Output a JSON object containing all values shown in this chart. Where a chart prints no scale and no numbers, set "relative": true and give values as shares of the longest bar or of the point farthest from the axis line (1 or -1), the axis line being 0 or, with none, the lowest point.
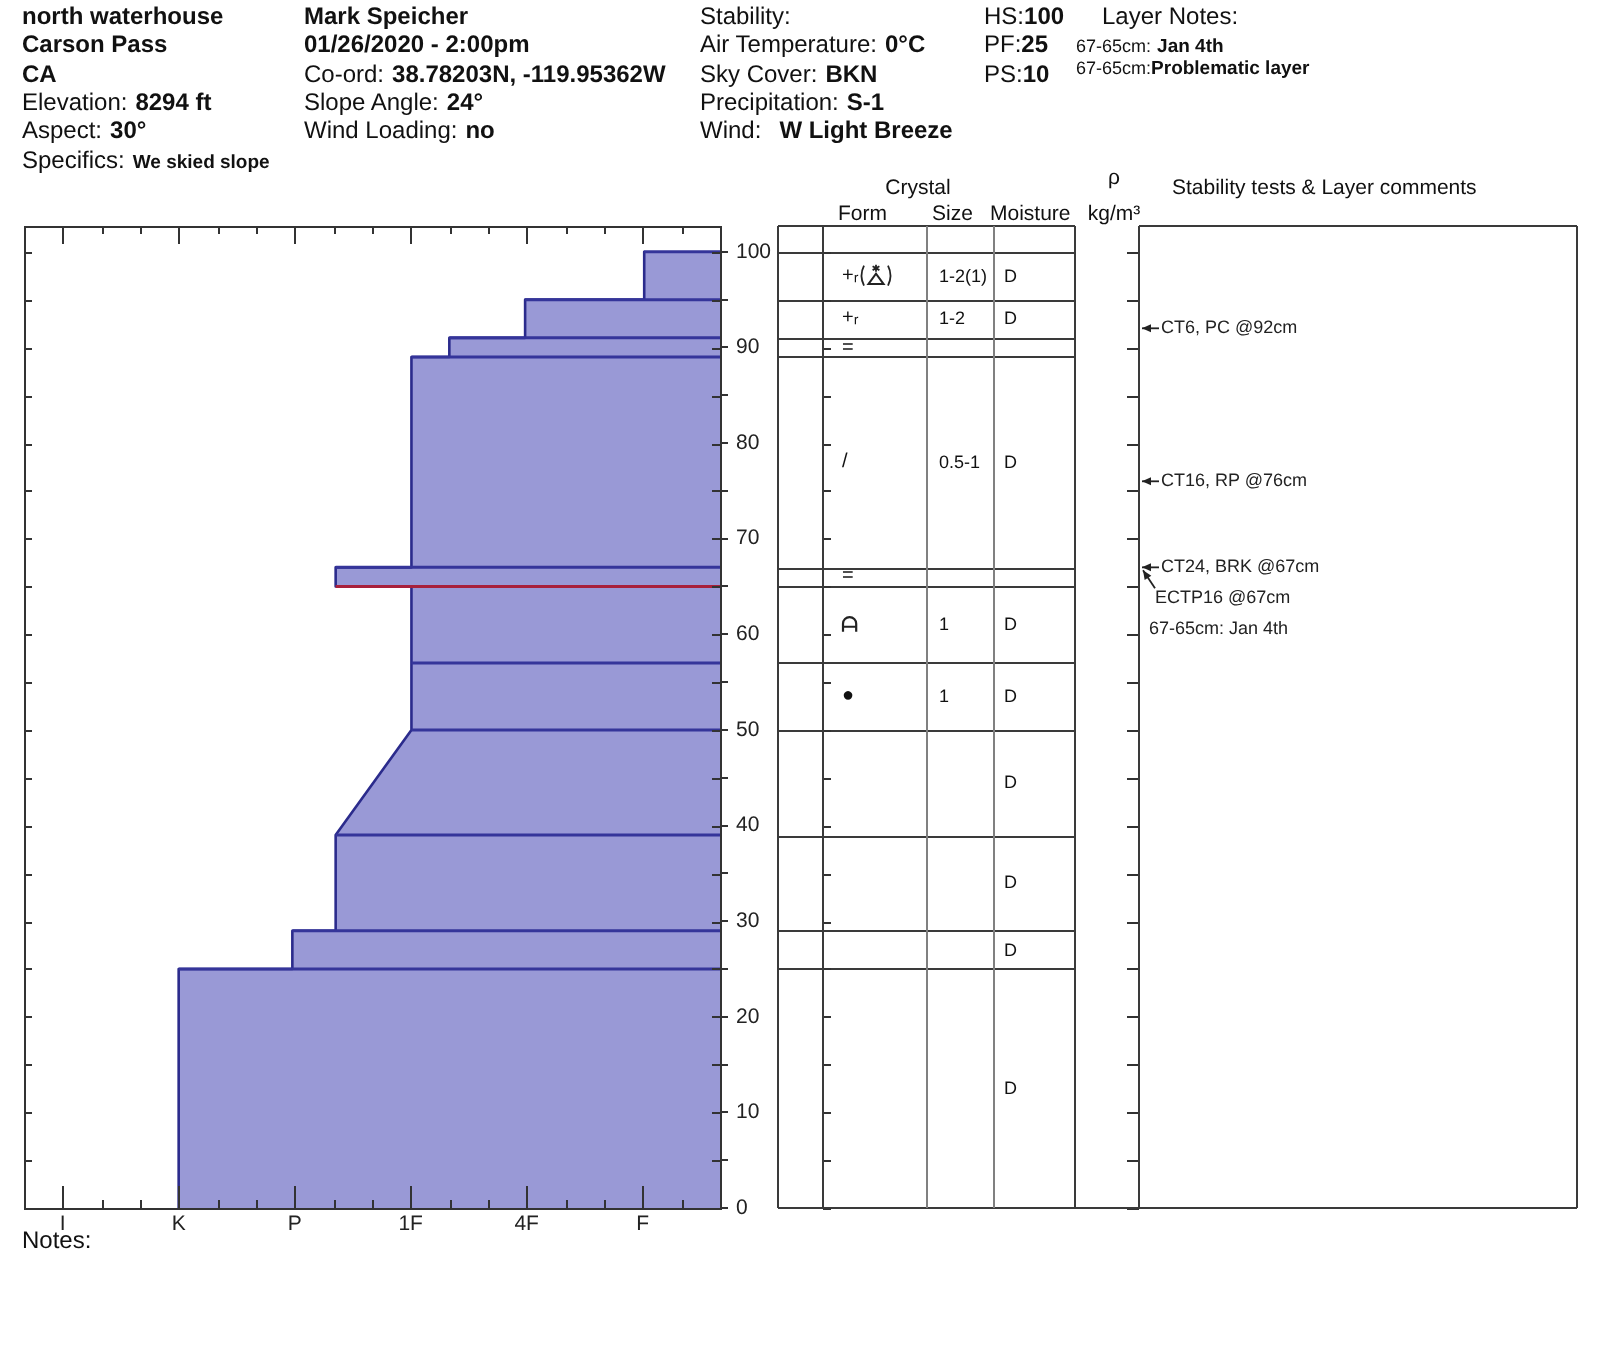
{
  "chart_data": [
    {
      "type": "other",
      "annotations": [
        "north waterhouse",
        "Carson Pass",
        "CA",
        "Elevation:",
        "8294 ft",
        "Aspect:",
        "30°",
        "Specifics:",
        "We skied slope",
        "Mark Speicher",
        "01/26/2020 - 2:00pm",
        "Co-ord:",
        "38.78203N, -119.95362W",
        "Slope Angle:",
        "24°",
        "Wind Loading:",
        "no",
        "Stability:",
        "Air Temperature:",
        "0°C",
        "Sky Cover:",
        "BKN",
        "Precipitation:",
        "S-1",
        "Wind:",
        "W Light Breeze",
        "HS:",
        "100",
        "PF:",
        "25",
        "PS:",
        "10",
        "Layer Notes:",
        "67-65cm:",
        "Jan 4th",
        "67-65cm:",
        "Problematic layer"
      ]
    },
    {
      "type": "area",
      "orientation": "horizontal",
      "relative": true,
      "x": [
        0,
        25,
        25,
        29,
        29,
        39,
        50,
        65,
        65,
        67,
        67,
        89,
        89,
        91,
        91,
        95,
        95,
        100
      ],
      "values": [
        -1,
        -1,
        -0.79,
        -0.79,
        -0.71,
        -0.71,
        -0.57,
        -0.57,
        -0.71,
        -0.71,
        -0.57,
        -0.57,
        -0.5,
        -0.5,
        -0.36,
        -0.36,
        -0.14,
        -0.14
      ],
      "color": "#9999d6",
      "ylim": [
        0,
        102.7
      ],
      "yticks": [
        0,
        {
          "value": 5,
          "label": null
        },
        10,
        {
          "value": 15,
          "label": null
        },
        20,
        {
          "value": 25,
          "label": null
        },
        30,
        {
          "value": 35,
          "label": null
        },
        40,
        {
          "value": 45,
          "label": null
        },
        50,
        {
          "value": 55,
          "label": null
        },
        60,
        {
          "value": 65,
          "label": null
        },
        70,
        {
          "value": 75,
          "label": null
        },
        80,
        {
          "value": 85,
          "label": null
        },
        90,
        {
          "value": 95,
          "label": null
        },
        100
      ],
      "ref_lines": [
        {
          "axis": "y",
          "value": 100,
          "color": "#35359a"
        },
        {
          "axis": "y",
          "value": 95,
          "color": "#35359a"
        },
        {
          "axis": "y",
          "value": 91,
          "color": "#35359a"
        },
        {
          "axis": "y",
          "value": 89,
          "color": "#35359a"
        },
        {
          "axis": "y",
          "value": 67,
          "color": "#35359a"
        },
        {
          "axis": "y",
          "value": 65,
          "color": "#a8203c"
        },
        {
          "axis": "y",
          "value": 57,
          "color": "#35359a"
        },
        {
          "axis": "y",
          "value": 50,
          "color": "#35359a"
        },
        {
          "axis": "y",
          "value": 39,
          "color": "#35359a"
        },
        {
          "axis": "y",
          "value": 29,
          "color": "#35359a"
        },
        {
          "axis": "y",
          "value": 25,
          "color": "#35359a"
        },
        {
          "axis": "y",
          "value": 92,
          "label": "CT6, PC @92cm"
        },
        {
          "axis": "y",
          "value": 76,
          "label": "CT16, RP @76cm"
        },
        {
          "axis": "y",
          "value": 67,
          "label": "CT24, BRK @67cm"
        }
      ],
      "annotations": [
        "I",
        "K",
        "P",
        "1F",
        "4F",
        "F",
        "ECTP16 @67cm",
        "67-65cm: Jan 4th"
      ]
    },
    {
      "type": "other",
      "annotations": [
        "Crystal",
        "Form",
        "Size",
        "Moisture",
        "ρ kg/m³",
        "Stability tests & Layer comments",
        "+ᵣ",
        "1-2(1)",
        "D",
        "+ᵣ",
        "1-2",
        "D",
        "=",
        "/",
        "0.5-1",
        "D",
        "=",
        "1",
        "D",
        "●",
        "1",
        "D",
        "D",
        "D",
        "D",
        "D"
      ]
    },
    {
      "type": "other",
      "annotations": [
        "Notes:"
      ]
    }
  ]
}
